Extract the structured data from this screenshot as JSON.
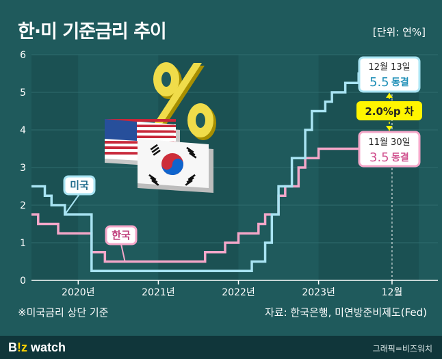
{
  "header": {
    "title": "한·미 기준금리 추이",
    "unit": "[단위: 연%]"
  },
  "footer": {
    "note": "※미국금리 상단 기준",
    "source": "자료: 한국은행, 미연방준비제도(Fed)",
    "logo_prefix": "B",
    "logo_mark": "!z",
    "logo_suffix": " watch",
    "credit": "그래픽=비즈워치"
  },
  "colors": {
    "background": "#1f5a5c",
    "us": "#a9e4f3",
    "kr": "#f4a7c9",
    "callout": "#ffef3a",
    "gap_highlight": "#fff500"
  },
  "icons": [
    "percent-sign-icon",
    "us-flag-icon",
    "korea-flag-icon"
  ],
  "chart_data": {
    "type": "line",
    "title": "한·미 기준금리 추이",
    "ylabel": "",
    "xlabel": "",
    "ylim": [
      0,
      6
    ],
    "yticks": [
      0,
      1,
      2,
      3,
      4,
      5,
      6
    ],
    "xlim": [
      "2019-06",
      "2024-04"
    ],
    "x_ticks": [
      {
        "x": "2020-01",
        "label": "2020년"
      },
      {
        "x": "2021-01",
        "label": "2021년"
      },
      {
        "x": "2022-01",
        "label": "2022년"
      },
      {
        "x": "2023-01",
        "label": "2023년"
      },
      {
        "x": "2023-12",
        "label": "12월"
      }
    ],
    "grid": true,
    "series": [
      {
        "name": "미국",
        "points": [
          [
            "2019-06",
            2.5
          ],
          [
            "2019-08",
            2.25
          ],
          [
            "2019-09",
            2.0
          ],
          [
            "2019-11",
            1.75
          ],
          [
            "2020-03",
            1.25
          ],
          [
            "2020-03",
            0.25
          ],
          [
            "2022-03",
            0.5
          ],
          [
            "2022-05",
            1.0
          ],
          [
            "2022-06",
            1.75
          ],
          [
            "2022-07",
            2.5
          ],
          [
            "2022-09",
            3.25
          ],
          [
            "2022-11",
            4.0
          ],
          [
            "2022-12",
            4.5
          ],
          [
            "2023-02",
            4.75
          ],
          [
            "2023-03",
            5.0
          ],
          [
            "2023-05",
            5.25
          ],
          [
            "2023-07",
            5.5
          ],
          [
            "2023-12",
            5.5
          ]
        ]
      },
      {
        "name": "한국",
        "points": [
          [
            "2019-06",
            1.75
          ],
          [
            "2019-07",
            1.5
          ],
          [
            "2019-10",
            1.25
          ],
          [
            "2020-03",
            0.75
          ],
          [
            "2020-05",
            0.5
          ],
          [
            "2021-08",
            0.75
          ],
          [
            "2021-11",
            1.0
          ],
          [
            "2022-01",
            1.25
          ],
          [
            "2022-04",
            1.5
          ],
          [
            "2022-05",
            1.75
          ],
          [
            "2022-07",
            2.25
          ],
          [
            "2022-08",
            2.5
          ],
          [
            "2022-10",
            3.0
          ],
          [
            "2022-11",
            3.25
          ],
          [
            "2023-01",
            3.5
          ],
          [
            "2023-11",
            3.5
          ]
        ]
      }
    ],
    "series_labels": [
      "미국",
      "한국"
    ],
    "annotations": [
      {
        "series": "미국",
        "date_label": "12월 13일",
        "value_text": "5.5",
        "status": "동결",
        "value": 5.5
      },
      {
        "series": "한국",
        "date_label": "11월 30일",
        "value_text": "3.5",
        "status": "동결",
        "value": 3.5
      },
      {
        "gap_text": "2.0%p 차"
      }
    ]
  }
}
